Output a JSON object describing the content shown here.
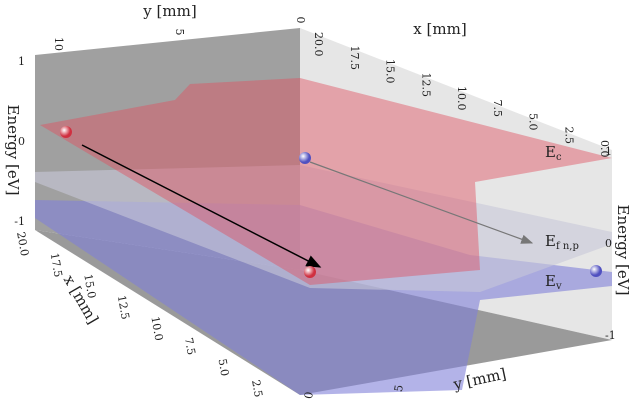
{
  "top_y_axis": {
    "label": "y [mm]",
    "ticks": [
      "10",
      "5",
      "0"
    ]
  },
  "top_x_axis": {
    "label": "x [mm]",
    "ticks": [
      "20.0",
      "17.5",
      "15.0",
      "12.5",
      "10.0",
      "7.5",
      "5.0",
      "2.5",
      "0.0"
    ]
  },
  "left_energy_axis": {
    "label": "Energy [eV]",
    "ticks": [
      "1",
      "0",
      "-1"
    ]
  },
  "right_energy_axis": {
    "label": "Energy [eV]",
    "ticks": [
      "1",
      "0",
      "-1"
    ]
  },
  "bottom_x_axis": {
    "label": "x [mm]",
    "ticks": [
      "20.0",
      "17.5",
      "15.0",
      "12.5",
      "10.0",
      "7.5",
      "5.0",
      "2.5"
    ]
  },
  "bottom_y_axis": {
    "label": "y [mm]",
    "ticks": [
      "0",
      "5"
    ]
  },
  "bands": {
    "conduction": "E",
    "conduction_sub": "c",
    "fermi": "E",
    "fermi_sub": "f n,p",
    "valence": "E",
    "valence_sub": "v"
  }
}
